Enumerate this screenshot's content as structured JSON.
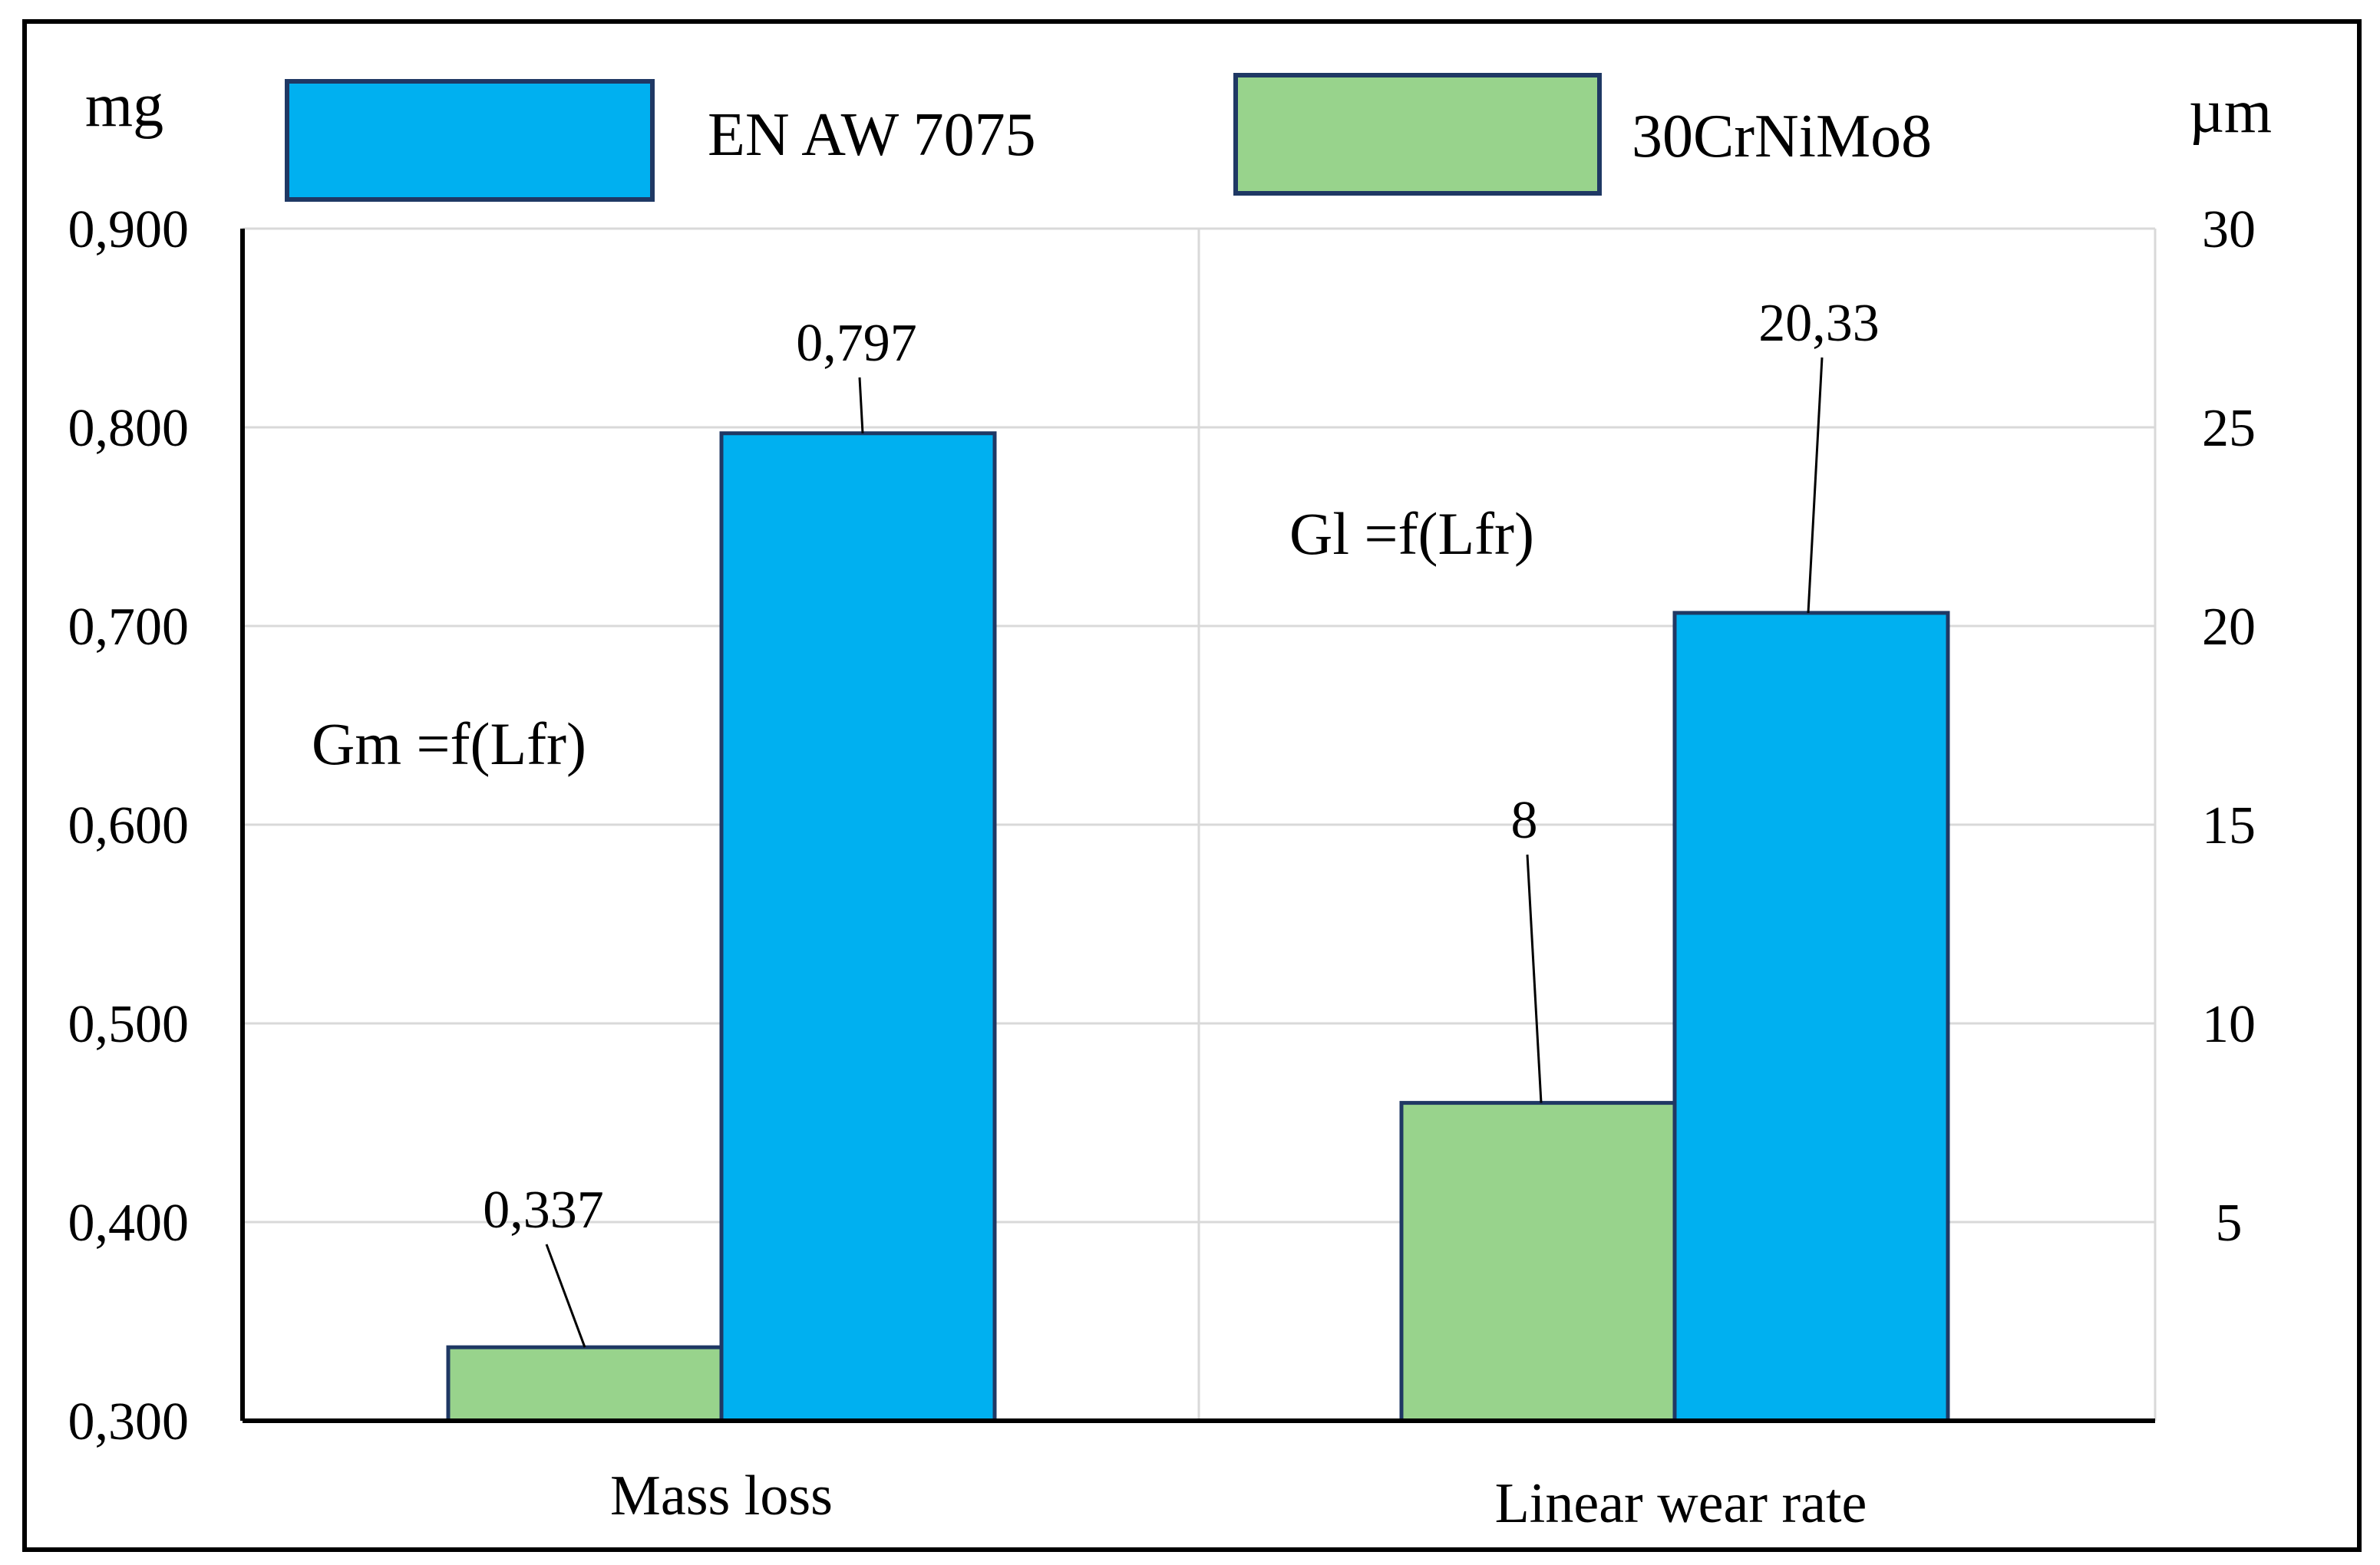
{
  "chart_data": {
    "type": "bar",
    "categories": [
      "Mass loss",
      "Linear wear rate"
    ],
    "series": [
      {
        "name": "30CrNiMo8",
        "color": "#98D38C",
        "values": [
          0.337,
          8
        ],
        "labels": [
          "0,337",
          "8"
        ]
      },
      {
        "name": "EN AW 7075",
        "color": "#00B0F0",
        "values": [
          0.797,
          20.33
        ],
        "labels": [
          "0,797",
          "20,33"
        ]
      }
    ],
    "axes": {
      "left": {
        "unit": "mg",
        "range": [
          0.3,
          0.9
        ],
        "ticks": [
          0.3,
          0.4,
          0.5,
          0.6,
          0.7,
          0.8,
          0.9
        ],
        "tick_labels": [
          "0,300",
          "0,400",
          "0,500",
          "0,600",
          "0,700",
          "0,800",
          "0,900"
        ]
      },
      "right": {
        "unit": "µm",
        "range": [
          0,
          30
        ],
        "ticks": [
          5,
          10,
          15,
          20,
          25,
          30
        ],
        "tick_labels": [
          "5",
          "10",
          "15",
          "20",
          "25",
          "30"
        ]
      }
    },
    "axis_per_category": [
      "left",
      "right"
    ],
    "annotations": [
      "Gm =f(Lfr)",
      "Gl =f(Lfr)"
    ],
    "legend": {
      "position": "top",
      "entries": [
        "EN AW 7075",
        "30CrNiMo8"
      ]
    },
    "grid": true,
    "colors": {
      "border": "#000000",
      "grid": "#D9D9D9",
      "bar_outline": "#1F3864"
    }
  }
}
